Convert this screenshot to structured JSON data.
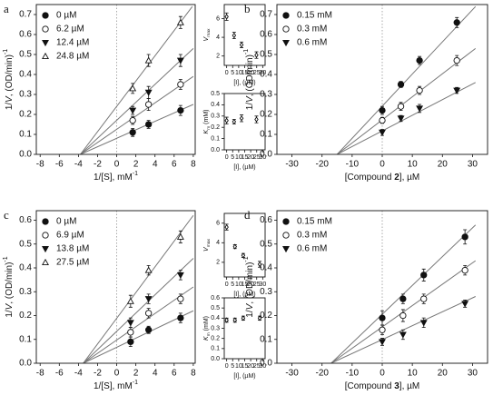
{
  "chart_data": [
    {
      "type": "scatter",
      "label": "a",
      "legend": "upper left",
      "zero_line": true,
      "x": [
        1.67,
        3.33,
        6.67
      ],
      "xlim": [
        -8.4,
        8.2
      ],
      "xticks": [
        -8,
        -6,
        -4,
        -2,
        0,
        2,
        4,
        6,
        8
      ],
      "ylim": [
        0,
        0.75
      ],
      "yticks": [
        {
          "value": 0,
          "label": "0.0"
        },
        0.1,
        0.2,
        0.3,
        0.4,
        0.5,
        0.6,
        0.7
      ],
      "xlabel": [
        {
          "text": "1/[S], mM",
          "style": "normal"
        },
        {
          "text": "-1",
          "style": "sup"
        }
      ],
      "ylabel": [
        {
          "text": "1/",
          "style": "normal"
        },
        {
          "text": "V",
          "style": "italic"
        },
        {
          "text": ", (OD/min)",
          "style": "normal"
        },
        {
          "text": "-1",
          "style": "sup"
        }
      ],
      "series": [
        {
          "name": "0 µM",
          "marker": "filled-circle",
          "values": [
            0.11,
            0.15,
            0.22
          ],
          "errors": [
            0.02,
            0.02,
            0.025
          ],
          "fit": {
            "x": [
              -3.8,
              8
            ],
            "y": [
              0,
              0.25
            ]
          }
        },
        {
          "name": "6.2 µM",
          "marker": "open-circle",
          "values": [
            0.17,
            0.25,
            0.35
          ],
          "errors": [
            0.02,
            0.03,
            0.025
          ],
          "fit": {
            "x": [
              -3.8,
              8
            ],
            "y": [
              0,
              0.39
            ]
          }
        },
        {
          "name": "12.4 µM",
          "marker": "filled-triangle-down",
          "values": [
            0.22,
            0.31,
            0.47
          ],
          "errors": [
            0.02,
            0.03,
            0.03
          ],
          "fit": {
            "x": [
              -3.8,
              8
            ],
            "y": [
              0,
              0.53
            ]
          }
        },
        {
          "name": "24.8 µM",
          "marker": "open-triangle-up",
          "values": [
            0.33,
            0.47,
            0.66
          ],
          "errors": [
            0.025,
            0.03,
            0.03
          ],
          "fit": {
            "x": [
              -3.8,
              7.9
            ],
            "y": [
              0,
              0.74
            ]
          }
        }
      ]
    },
    {
      "type": "scatter",
      "x": [
        0,
        6.2,
        12.4,
        24.8
      ],
      "xlim": [
        -2,
        32
      ],
      "xticks": [
        0,
        5,
        10,
        15,
        20,
        25,
        30
      ],
      "ylim": [
        1,
        7.5
      ],
      "yticks": [
        2,
        4,
        6
      ],
      "xlabel": [
        {
          "text": "[I], (µM)",
          "style": "normal"
        }
      ],
      "ylabel": [
        {
          "text": "V",
          "style": "italic"
        },
        {
          "text": "max",
          "style": "sub"
        }
      ],
      "series": [
        {
          "marker": "open-diamond",
          "values": [
            6.2,
            4.2,
            3.2,
            2.1
          ],
          "errors": [
            0.4,
            0.35,
            0.3,
            0.35
          ]
        }
      ]
    },
    {
      "type": "scatter",
      "x": [
        0,
        6.2,
        12.4,
        24.8
      ],
      "xlim": [
        -2,
        32
      ],
      "xticks": [
        0,
        5,
        10,
        15,
        20,
        25,
        30
      ],
      "ylim": [
        0,
        0.5
      ],
      "yticks": [
        {
          "value": 0,
          "label": "0.0"
        },
        0.1,
        0.2,
        0.3,
        0.4,
        0.5
      ],
      "xlabel": [
        {
          "text": "[I], (µM)",
          "style": "normal"
        }
      ],
      "ylabel": [
        {
          "text": "K",
          "style": "italic"
        },
        {
          "text": "m",
          "style": "sub"
        },
        {
          "text": " (mM)",
          "style": "normal"
        }
      ],
      "series": [
        {
          "marker": "open-diamond",
          "values": [
            0.26,
            0.25,
            0.28,
            0.27
          ],
          "errors": [
            0.03,
            0.02,
            0.03,
            0.03
          ]
        }
      ]
    },
    {
      "type": "scatter",
      "label": "b",
      "legend": "upper left",
      "zero_line": true,
      "x": [
        0,
        6.2,
        12.4,
        24.8
      ],
      "xlim": [
        -35,
        35
      ],
      "xticks": [
        -30,
        -20,
        -10,
        0,
        10,
        20,
        30
      ],
      "ylim": [
        0,
        0.75
      ],
      "yticks": [
        {
          "value": 0,
          "label": "0.0"
        },
        0.1,
        0.2,
        0.3,
        0.4,
        0.5,
        0.6,
        0.7
      ],
      "xlabel": [
        {
          "text": "[Compound ",
          "style": "normal"
        },
        {
          "text": "2",
          "style": "bold"
        },
        {
          "text": "], µM",
          "style": "normal"
        }
      ],
      "ylabel": [
        {
          "text": "1/",
          "style": "normal"
        },
        {
          "text": "V",
          "style": "italic"
        },
        {
          "text": ", (OD/min)",
          "style": "normal"
        },
        {
          "text": "-1",
          "style": "sup"
        }
      ],
      "series": [
        {
          "name": "0.15 mM",
          "marker": "filled-circle",
          "values": [
            0.22,
            0.35,
            0.47,
            0.66
          ],
          "errors": [
            0.02,
            0.015,
            0.02,
            0.025
          ],
          "fit": {
            "x": [
              -15,
              31
            ],
            "y": [
              0,
              0.74
            ]
          }
        },
        {
          "name": "0.3 mM",
          "marker": "open-circle",
          "values": [
            0.17,
            0.24,
            0.32,
            0.47
          ],
          "errors": [
            0.015,
            0.02,
            0.02,
            0.025
          ],
          "fit": {
            "x": [
              -15,
              31
            ],
            "y": [
              0,
              0.53
            ]
          }
        },
        {
          "name": "0.6 mM",
          "marker": "filled-triangle-down",
          "values": [
            0.11,
            0.18,
            0.23,
            0.32
          ],
          "errors": [
            0.015,
            0.015,
            0.02,
            0.015
          ],
          "fit": {
            "x": [
              -15,
              31
            ],
            "y": [
              0,
              0.36
            ]
          }
        }
      ]
    },
    {
      "type": "scatter",
      "label": "c",
      "legend": "upper left",
      "zero_line": true,
      "x": [
        1.45,
        3.33,
        6.67
      ],
      "xlim": [
        -8.4,
        8.2
      ],
      "xticks": [
        -8,
        -6,
        -4,
        -2,
        0,
        2,
        4,
        6,
        8
      ],
      "ylim": [
        0,
        0.64
      ],
      "yticks": [
        {
          "value": 0,
          "label": "0.0"
        },
        0.1,
        0.2,
        0.3,
        0.4,
        0.5,
        0.6
      ],
      "xlabel": [
        {
          "text": "1/[S], mM",
          "style": "normal"
        },
        {
          "text": "-1",
          "style": "sup"
        }
      ],
      "ylabel": [
        {
          "text": "1/",
          "style": "normal"
        },
        {
          "text": "V",
          "style": "italic"
        },
        {
          "text": ", (OD/min)",
          "style": "normal"
        },
        {
          "text": "-1",
          "style": "sup"
        }
      ],
      "series": [
        {
          "name": "0 µM",
          "marker": "filled-circle",
          "values": [
            0.09,
            0.14,
            0.19
          ],
          "errors": [
            0.02,
            0.015,
            0.02
          ],
          "fit": {
            "x": [
              -3.5,
              8
            ],
            "y": [
              0,
              0.22
            ]
          }
        },
        {
          "name": "6.9 µM",
          "marker": "open-circle",
          "values": [
            0.13,
            0.21,
            0.27
          ],
          "errors": [
            0.02,
            0.02,
            0.02
          ],
          "fit": {
            "x": [
              -3.5,
              8
            ],
            "y": [
              0,
              0.32
            ]
          }
        },
        {
          "name": "13.8 µM",
          "marker": "filled-triangle-down",
          "values": [
            0.17,
            0.27,
            0.37
          ],
          "errors": [
            0.02,
            0.02,
            0.02
          ],
          "fit": {
            "x": [
              -3.5,
              8
            ],
            "y": [
              0,
              0.44
            ]
          }
        },
        {
          "name": "27.5 µM",
          "marker": "open-triangle-up",
          "values": [
            0.26,
            0.39,
            0.53
          ],
          "errors": [
            0.025,
            0.02,
            0.025
          ],
          "fit": {
            "x": [
              -3.5,
              8
            ],
            "y": [
              0,
              0.62
            ]
          }
        }
      ]
    },
    {
      "type": "scatter",
      "x": [
        0,
        6.9,
        13.8,
        27.5
      ],
      "xlim": [
        -2,
        32
      ],
      "xticks": [
        0,
        5,
        10,
        15,
        20,
        25,
        30
      ],
      "ylim": [
        0.5,
        7
      ],
      "yticks": [
        2,
        4,
        6
      ],
      "xlabel": [
        {
          "text": "[I], (µM)",
          "style": "normal"
        }
      ],
      "ylabel": [
        {
          "text": "V",
          "style": "italic"
        },
        {
          "text": "max",
          "style": "sub"
        }
      ],
      "series": [
        {
          "marker": "open-diamond",
          "values": [
            5.6,
            3.6,
            2.7,
            1.8
          ],
          "errors": [
            0.3,
            0.2,
            0.2,
            0.3
          ]
        }
      ]
    },
    {
      "type": "scatter",
      "x": [
        0,
        6.9,
        13.8,
        27.5
      ],
      "xlim": [
        -2,
        32
      ],
      "xticks": [
        0,
        5,
        10,
        15,
        20,
        25,
        30
      ],
      "ylim": [
        0,
        0.6
      ],
      "yticks": [
        {
          "value": 0,
          "label": "0.0"
        },
        0.1,
        0.2,
        0.3,
        0.4,
        0.5,
        0.6
      ],
      "xlabel": [
        {
          "text": "[I], (µM)",
          "style": "normal"
        }
      ],
      "ylabel": [
        {
          "text": "K",
          "style": "italic"
        },
        {
          "text": "m",
          "style": "sub"
        },
        {
          "text": " (mM)",
          "style": "normal"
        }
      ],
      "series": [
        {
          "marker": "open-diamond",
          "values": [
            0.38,
            0.38,
            0.4,
            0.4
          ],
          "errors": [
            0.02,
            0.02,
            0.02,
            0.02
          ]
        }
      ]
    },
    {
      "type": "scatter",
      "label": "d",
      "legend": "upper left",
      "zero_line": true,
      "x": [
        0,
        6.9,
        13.8,
        27.5
      ],
      "xlim": [
        -35,
        35
      ],
      "xticks": [
        -30,
        -20,
        -10,
        0,
        10,
        20,
        30
      ],
      "ylim": [
        0,
        0.64
      ],
      "yticks": [
        {
          "value": 0,
          "label": "0.0"
        },
        0.1,
        0.2,
        0.3,
        0.4,
        0.5,
        0.6
      ],
      "xlabel": [
        {
          "text": "[Compound ",
          "style": "normal"
        },
        {
          "text": "3",
          "style": "bold"
        },
        {
          "text": "], µM",
          "style": "normal"
        }
      ],
      "ylabel": [
        {
          "text": "1/",
          "style": "normal"
        },
        {
          "text": "V",
          "style": "italic"
        },
        {
          "text": ", (OD/min)",
          "style": "normal"
        },
        {
          "text": "-1",
          "style": "sup"
        }
      ],
      "series": [
        {
          "name": "0.15 mM",
          "marker": "filled-circle",
          "values": [
            0.19,
            0.27,
            0.37,
            0.53
          ],
          "errors": [
            0.03,
            0.02,
            0.025,
            0.03
          ],
          "fit": {
            "x": [
              -17,
              31
            ],
            "y": [
              0,
              0.58
            ]
          }
        },
        {
          "name": "0.3 mM",
          "marker": "open-circle",
          "values": [
            0.14,
            0.2,
            0.27,
            0.39
          ],
          "errors": [
            0.02,
            0.025,
            0.02,
            0.02
          ],
          "fit": {
            "x": [
              -17,
              31
            ],
            "y": [
              0,
              0.43
            ]
          }
        },
        {
          "name": "0.6 mM",
          "marker": "filled-triangle-down",
          "values": [
            0.09,
            0.12,
            0.17,
            0.25
          ],
          "errors": [
            0.015,
            0.02,
            0.02,
            0.015
          ],
          "fit": {
            "x": [
              -17,
              31
            ],
            "y": [
              0,
              0.28
            ]
          }
        }
      ]
    }
  ]
}
